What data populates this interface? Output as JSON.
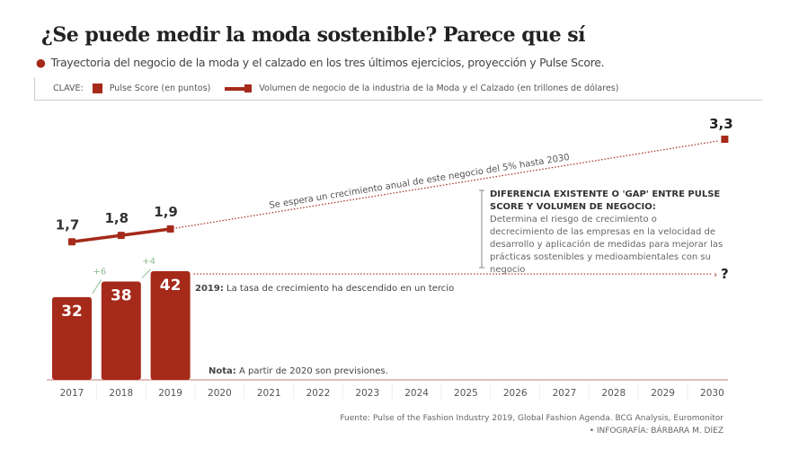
{
  "title": "¿Se puede medir la moda sostenible? Parece que sí",
  "subtitle": "Trayectoria del negocio de la moda y el calzado en los tres últimos ejercicios, proyección y Pulse Score.",
  "legend": {
    "label": "CLAVE:",
    "bar_label": "Pulse Score (en puntos)",
    "line_label": "Volumen de negocio de la industria de la Moda y el Calzado (en trillones de dólares)"
  },
  "colors": {
    "accent": "#a52a1a",
    "increase": "#8fbf8f"
  },
  "chart_data": {
    "type": "bar+line",
    "categories": [
      "2017",
      "2018",
      "2019",
      "2020",
      "2021",
      "2022",
      "2023",
      "2024",
      "2025",
      "2026",
      "2027",
      "2028",
      "2029",
      "2030"
    ],
    "series": [
      {
        "name": "Pulse Score (en puntos)",
        "type": "bar",
        "values": [
          32,
          38,
          42,
          null,
          null,
          null,
          null,
          null,
          null,
          null,
          null,
          null,
          null,
          null
        ],
        "labels": [
          "32",
          "38",
          "42"
        ],
        "increments": [
          "+6",
          "+4"
        ],
        "projection_label": "?"
      },
      {
        "name": "Volumen de negocio de la industria de la Moda y el Calzado (en trillones de dólares)",
        "type": "line",
        "values": [
          1.7,
          1.8,
          1.9,
          null,
          null,
          null,
          null,
          null,
          null,
          null,
          null,
          null,
          null,
          3.3
        ],
        "labels": [
          "1,7",
          "1,8",
          "1,9",
          "3,3"
        ],
        "projected_from": "2019"
      }
    ],
    "annotations": {
      "projection": "Se espera un crecimiento anual de este negocio del 5% hasta 2030",
      "rate_bold": "2019:",
      "rate_text": "La tasa de crecimiento ha descendido en un tercio",
      "note_bold": "Nota:",
      "note_text": "A partir de 2020 son previsiones.",
      "gap_title": "DIFERENCIA EXISTENTE O 'GAP' ENTRE PULSE SCORE Y VOLUMEN DE NEGOCIO:",
      "gap_text": "Determina el riesgo de crecimiento o decrecimiento de las empresas en la velocidad de desarrollo y aplicación de medidas para mejorar las prácticas sostenibles y medioambientales con su negocio"
    }
  },
  "source": "Fuente: Pulse of the Fashion Industry 2019, Global Fashion Agenda. BCG Analysis, Euromonitor",
  "credit": "• INFOGRAFÍA: BÁRBARA M. DÍEZ"
}
